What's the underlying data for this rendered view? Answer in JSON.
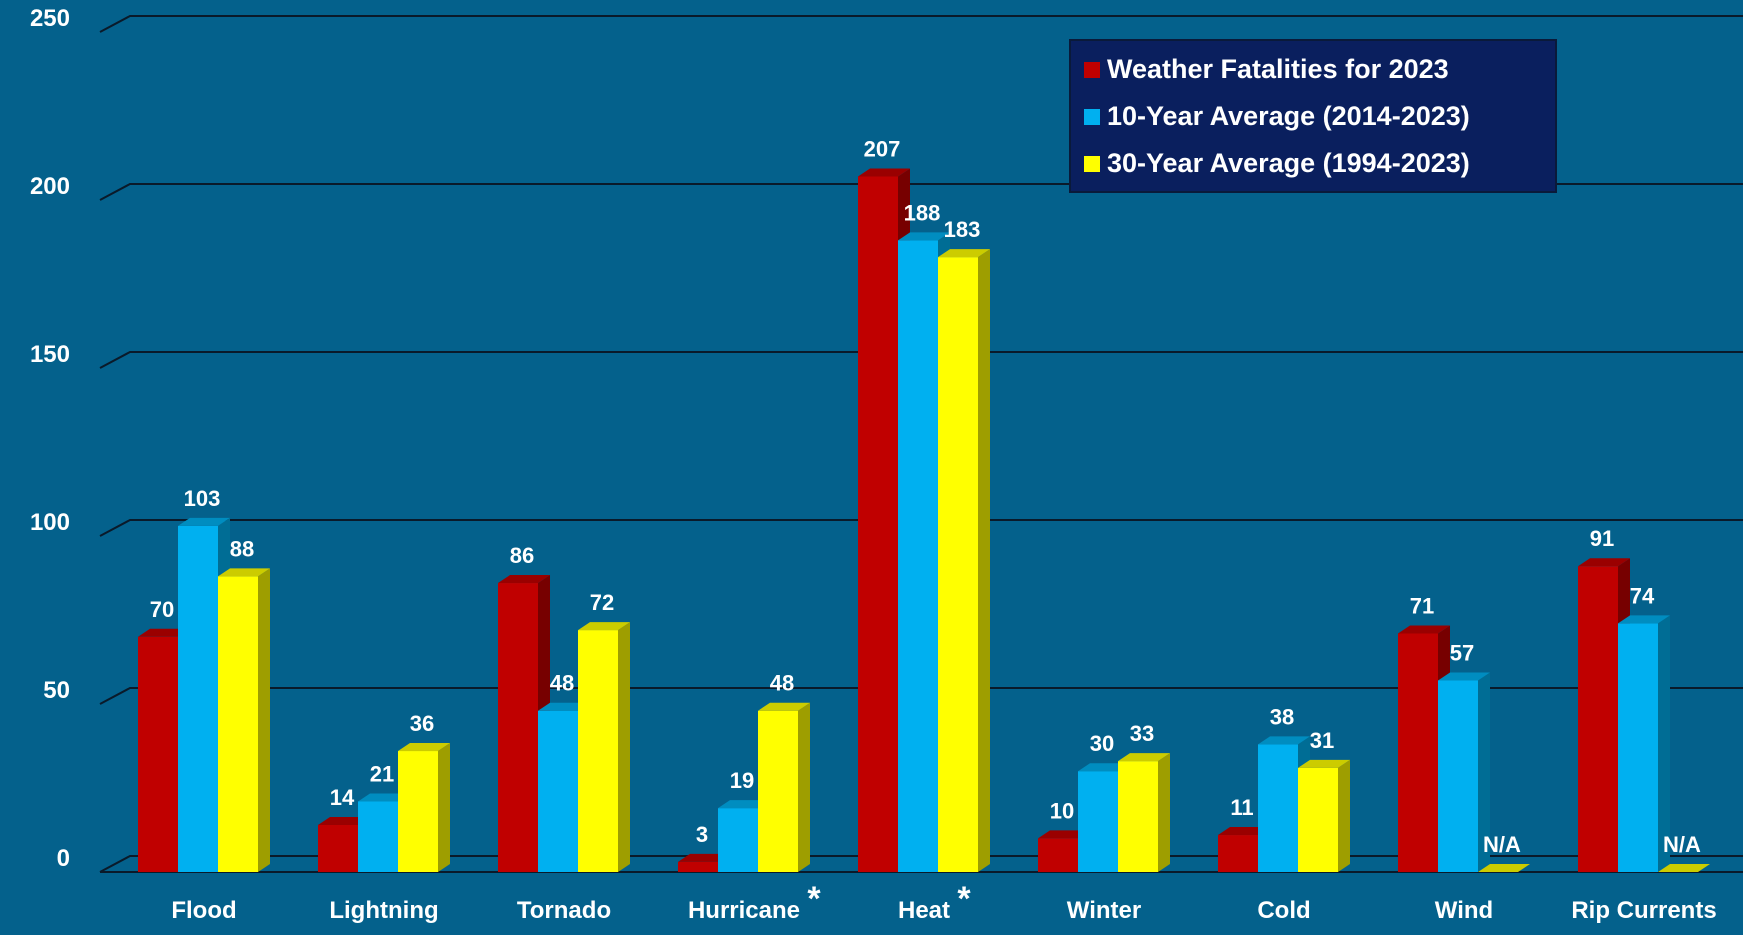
{
  "chart_data": {
    "type": "bar",
    "title": "",
    "xlabel": "",
    "ylabel": "",
    "ylim": [
      0,
      250
    ],
    "yticks": [
      "0",
      "50",
      "100",
      "150",
      "200",
      "250"
    ],
    "grid": true,
    "legend_position": "top-right",
    "categories": [
      "Flood",
      "Lightning",
      "Tornado",
      "Hurricane",
      "Heat",
      "Winter",
      "Cold",
      "Wind",
      "Rip Currents"
    ],
    "category_marks": [
      "",
      "",
      "",
      "*",
      "*",
      "",
      "",
      "",
      ""
    ],
    "series": [
      {
        "name": "Weather Fatalities for 2023",
        "color": "#c00000",
        "values": [
          70,
          14,
          86,
          3,
          207,
          10,
          11,
          71,
          91
        ],
        "labels": [
          "70",
          "14",
          "86",
          "3",
          "207",
          "10",
          "11",
          "71",
          "91"
        ]
      },
      {
        "name": "10-Year Average (2014-2023)",
        "color": "#00b0f0",
        "values": [
          103,
          21,
          48,
          19,
          188,
          30,
          38,
          57,
          74
        ],
        "labels": [
          "103",
          "21",
          "48",
          "19",
          "188",
          "30",
          "38",
          "57",
          "74"
        ]
      },
      {
        "name": "30-Year Average (1994-2023)",
        "color": "#ffff00",
        "values": [
          88,
          36,
          72,
          48,
          183,
          33,
          31,
          0,
          0
        ],
        "labels": [
          "88",
          "36",
          "72",
          "48",
          "183",
          "33",
          "31",
          "N/A",
          "N/A"
        ]
      }
    ]
  }
}
